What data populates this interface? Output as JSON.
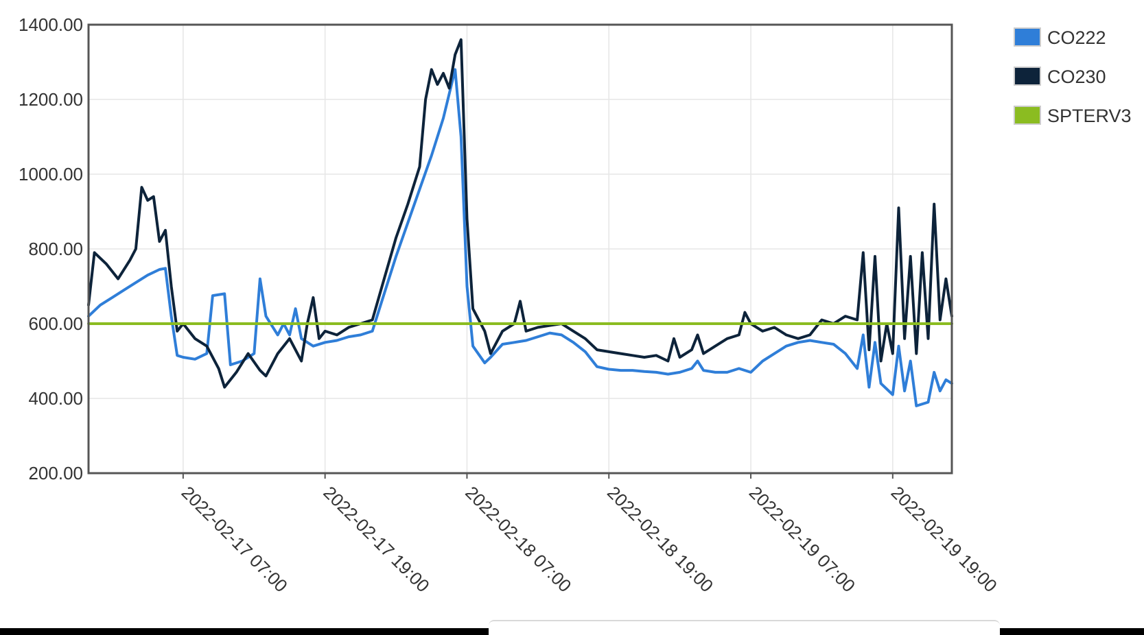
{
  "chart_data": {
    "type": "line",
    "title": "",
    "xlabel": "",
    "ylabel": "",
    "x_range": [
      "2022-02-16 23:00",
      "2022-02-20 00:00"
    ],
    "ylim": [
      200,
      1400
    ],
    "y_ticks": [
      "200.00",
      "400.00",
      "600.00",
      "800.00",
      "1000.00",
      "1200.00",
      "1400.00"
    ],
    "x_ticks": [
      {
        "t": "2022-02-17 07:00",
        "label": "2022-02-17 07:00"
      },
      {
        "t": "2022-02-17 19:00",
        "label": "2022-02-17 19:00"
      },
      {
        "t": "2022-02-18 07:00",
        "label": "2022-02-18 07:00"
      },
      {
        "t": "2022-02-18 19:00",
        "label": "2022-02-18 19:00"
      },
      {
        "t": "2022-02-19 07:00",
        "label": "2022-02-19 07:00"
      },
      {
        "t": "2022-02-19 19:00",
        "label": "2022-02-19 19:00"
      }
    ],
    "grid": true,
    "legend_position": "right",
    "series": [
      {
        "name": "CO222",
        "color": "#2f7ed8",
        "points": [
          [
            "2022-02-16 23:00",
            620
          ],
          [
            "2022-02-17 00:00",
            650
          ],
          [
            "2022-02-17 01:00",
            670
          ],
          [
            "2022-02-17 02:00",
            690
          ],
          [
            "2022-02-17 03:00",
            710
          ],
          [
            "2022-02-17 04:00",
            730
          ],
          [
            "2022-02-17 05:00",
            745
          ],
          [
            "2022-02-17 05:30",
            748
          ],
          [
            "2022-02-17 06:00",
            620
          ],
          [
            "2022-02-17 06:30",
            515
          ],
          [
            "2022-02-17 07:00",
            510
          ],
          [
            "2022-02-17 08:00",
            505
          ],
          [
            "2022-02-17 09:00",
            520
          ],
          [
            "2022-02-17 09:30",
            675
          ],
          [
            "2022-02-17 10:30",
            680
          ],
          [
            "2022-02-17 11:00",
            490
          ],
          [
            "2022-02-17 12:00",
            500
          ],
          [
            "2022-02-17 13:00",
            520
          ],
          [
            "2022-02-17 13:30",
            720
          ],
          [
            "2022-02-17 14:00",
            620
          ],
          [
            "2022-02-17 15:00",
            570
          ],
          [
            "2022-02-17 15:30",
            600
          ],
          [
            "2022-02-17 16:00",
            570
          ],
          [
            "2022-02-17 16:30",
            640
          ],
          [
            "2022-02-17 17:00",
            560
          ],
          [
            "2022-02-17 18:00",
            540
          ],
          [
            "2022-02-17 19:00",
            550
          ],
          [
            "2022-02-17 20:00",
            555
          ],
          [
            "2022-02-17 21:00",
            565
          ],
          [
            "2022-02-17 22:00",
            570
          ],
          [
            "2022-02-17 23:00",
            580
          ],
          [
            "2022-02-18 00:00",
            680
          ],
          [
            "2022-02-18 01:00",
            780
          ],
          [
            "2022-02-18 02:00",
            870
          ],
          [
            "2022-02-18 03:00",
            960
          ],
          [
            "2022-02-18 04:00",
            1050
          ],
          [
            "2022-02-18 05:00",
            1150
          ],
          [
            "2022-02-18 06:00",
            1280
          ],
          [
            "2022-02-18 06:30",
            1100
          ],
          [
            "2022-02-18 07:00",
            700
          ],
          [
            "2022-02-18 07:30",
            540
          ],
          [
            "2022-02-18 08:30",
            495
          ],
          [
            "2022-02-18 09:00",
            510
          ],
          [
            "2022-02-18 10:00",
            545
          ],
          [
            "2022-02-18 11:00",
            550
          ],
          [
            "2022-02-18 12:00",
            555
          ],
          [
            "2022-02-18 13:00",
            565
          ],
          [
            "2022-02-18 14:00",
            575
          ],
          [
            "2022-02-18 15:00",
            570
          ],
          [
            "2022-02-18 16:00",
            550
          ],
          [
            "2022-02-18 17:00",
            525
          ],
          [
            "2022-02-18 18:00",
            485
          ],
          [
            "2022-02-18 19:00",
            478
          ],
          [
            "2022-02-18 20:00",
            475
          ],
          [
            "2022-02-18 21:00",
            475
          ],
          [
            "2022-02-18 22:00",
            472
          ],
          [
            "2022-02-18 23:00",
            470
          ],
          [
            "2022-02-19 00:00",
            465
          ],
          [
            "2022-02-19 01:00",
            470
          ],
          [
            "2022-02-19 02:00",
            480
          ],
          [
            "2022-02-19 02:30",
            500
          ],
          [
            "2022-02-19 03:00",
            475
          ],
          [
            "2022-02-19 04:00",
            470
          ],
          [
            "2022-02-19 05:00",
            470
          ],
          [
            "2022-02-19 06:00",
            480
          ],
          [
            "2022-02-19 07:00",
            470
          ],
          [
            "2022-02-19 08:00",
            500
          ],
          [
            "2022-02-19 09:00",
            520
          ],
          [
            "2022-02-19 10:00",
            540
          ],
          [
            "2022-02-19 11:00",
            550
          ],
          [
            "2022-02-19 12:00",
            555
          ],
          [
            "2022-02-19 13:00",
            550
          ],
          [
            "2022-02-19 14:00",
            545
          ],
          [
            "2022-02-19 15:00",
            520
          ],
          [
            "2022-02-19 16:00",
            480
          ],
          [
            "2022-02-19 16:30",
            570
          ],
          [
            "2022-02-19 17:00",
            430
          ],
          [
            "2022-02-19 17:30",
            550
          ],
          [
            "2022-02-19 18:00",
            440
          ],
          [
            "2022-02-19 19:00",
            410
          ],
          [
            "2022-02-19 19:30",
            540
          ],
          [
            "2022-02-19 20:00",
            420
          ],
          [
            "2022-02-19 20:30",
            500
          ],
          [
            "2022-02-19 21:00",
            380
          ],
          [
            "2022-02-19 22:00",
            390
          ],
          [
            "2022-02-19 22:30",
            470
          ],
          [
            "2022-02-19 23:00",
            420
          ],
          [
            "2022-02-19 23:30",
            450
          ],
          [
            "2022-02-20 00:00",
            440
          ]
        ]
      },
      {
        "name": "CO230",
        "color": "#0d233a",
        "points": [
          [
            "2022-02-16 23:00",
            650
          ],
          [
            "2022-02-16 23:30",
            790
          ],
          [
            "2022-02-17 00:30",
            760
          ],
          [
            "2022-02-17 01:30",
            720
          ],
          [
            "2022-02-17 02:30",
            770
          ],
          [
            "2022-02-17 03:00",
            800
          ],
          [
            "2022-02-17 03:30",
            965
          ],
          [
            "2022-02-17 04:00",
            930
          ],
          [
            "2022-02-17 04:30",
            940
          ],
          [
            "2022-02-17 05:00",
            820
          ],
          [
            "2022-02-17 05:30",
            850
          ],
          [
            "2022-02-17 06:00",
            700
          ],
          [
            "2022-02-17 06:30",
            580
          ],
          [
            "2022-02-17 07:00",
            600
          ],
          [
            "2022-02-17 08:00",
            560
          ],
          [
            "2022-02-17 09:00",
            540
          ],
          [
            "2022-02-17 10:00",
            480
          ],
          [
            "2022-02-17 10:30",
            430
          ],
          [
            "2022-02-17 11:30",
            470
          ],
          [
            "2022-02-17 12:30",
            520
          ],
          [
            "2022-02-17 13:30",
            475
          ],
          [
            "2022-02-17 14:00",
            460
          ],
          [
            "2022-02-17 15:00",
            520
          ],
          [
            "2022-02-17 16:00",
            560
          ],
          [
            "2022-02-17 17:00",
            500
          ],
          [
            "2022-02-17 17:30",
            600
          ],
          [
            "2022-02-17 18:00",
            670
          ],
          [
            "2022-02-17 18:30",
            560
          ],
          [
            "2022-02-17 19:00",
            580
          ],
          [
            "2022-02-17 20:00",
            570
          ],
          [
            "2022-02-17 21:00",
            590
          ],
          [
            "2022-02-17 22:00",
            600
          ],
          [
            "2022-02-17 23:00",
            610
          ],
          [
            "2022-02-18 00:00",
            720
          ],
          [
            "2022-02-18 01:00",
            830
          ],
          [
            "2022-02-18 02:00",
            920
          ],
          [
            "2022-02-18 03:00",
            1020
          ],
          [
            "2022-02-18 03:30",
            1200
          ],
          [
            "2022-02-18 04:00",
            1280
          ],
          [
            "2022-02-18 04:30",
            1240
          ],
          [
            "2022-02-18 05:00",
            1270
          ],
          [
            "2022-02-18 05:30",
            1230
          ],
          [
            "2022-02-18 06:00",
            1320
          ],
          [
            "2022-02-18 06:30",
            1360
          ],
          [
            "2022-02-18 07:00",
            880
          ],
          [
            "2022-02-18 07:30",
            640
          ],
          [
            "2022-02-18 08:30",
            580
          ],
          [
            "2022-02-18 09:00",
            520
          ],
          [
            "2022-02-18 10:00",
            580
          ],
          [
            "2022-02-18 11:00",
            600
          ],
          [
            "2022-02-18 11:30",
            660
          ],
          [
            "2022-02-18 12:00",
            580
          ],
          [
            "2022-02-18 13:00",
            590
          ],
          [
            "2022-02-18 14:00",
            595
          ],
          [
            "2022-02-18 15:00",
            600
          ],
          [
            "2022-02-18 16:00",
            580
          ],
          [
            "2022-02-18 17:00",
            560
          ],
          [
            "2022-02-18 18:00",
            530
          ],
          [
            "2022-02-18 19:00",
            525
          ],
          [
            "2022-02-18 20:00",
            520
          ],
          [
            "2022-02-18 21:00",
            515
          ],
          [
            "2022-02-18 22:00",
            510
          ],
          [
            "2022-02-18 23:00",
            515
          ],
          [
            "2022-02-19 00:00",
            500
          ],
          [
            "2022-02-19 00:30",
            560
          ],
          [
            "2022-02-19 01:00",
            510
          ],
          [
            "2022-02-19 02:00",
            530
          ],
          [
            "2022-02-19 02:30",
            570
          ],
          [
            "2022-02-19 03:00",
            520
          ],
          [
            "2022-02-19 04:00",
            540
          ],
          [
            "2022-02-19 05:00",
            560
          ],
          [
            "2022-02-19 06:00",
            570
          ],
          [
            "2022-02-19 06:30",
            630
          ],
          [
            "2022-02-19 07:00",
            600
          ],
          [
            "2022-02-19 08:00",
            580
          ],
          [
            "2022-02-19 09:00",
            590
          ],
          [
            "2022-02-19 10:00",
            570
          ],
          [
            "2022-02-19 11:00",
            560
          ],
          [
            "2022-02-19 12:00",
            570
          ],
          [
            "2022-02-19 13:00",
            610
          ],
          [
            "2022-02-19 14:00",
            600
          ],
          [
            "2022-02-19 15:00",
            620
          ],
          [
            "2022-02-19 16:00",
            610
          ],
          [
            "2022-02-19 16:30",
            790
          ],
          [
            "2022-02-19 17:00",
            530
          ],
          [
            "2022-02-19 17:30",
            780
          ],
          [
            "2022-02-19 18:00",
            500
          ],
          [
            "2022-02-19 18:30",
            600
          ],
          [
            "2022-02-19 19:00",
            520
          ],
          [
            "2022-02-19 19:30",
            910
          ],
          [
            "2022-02-19 20:00",
            560
          ],
          [
            "2022-02-19 20:30",
            780
          ],
          [
            "2022-02-19 21:00",
            520
          ],
          [
            "2022-02-19 21:30",
            790
          ],
          [
            "2022-02-19 22:00",
            560
          ],
          [
            "2022-02-19 22:30",
            920
          ],
          [
            "2022-02-19 23:00",
            610
          ],
          [
            "2022-02-19 23:30",
            720
          ],
          [
            "2022-02-20 00:00",
            620
          ]
        ]
      },
      {
        "name": "SPTERV3",
        "color": "#8bbc21",
        "points": [
          [
            "2022-02-16 23:00",
            600
          ],
          [
            "2022-02-20 00:00",
            600
          ]
        ]
      }
    ]
  }
}
